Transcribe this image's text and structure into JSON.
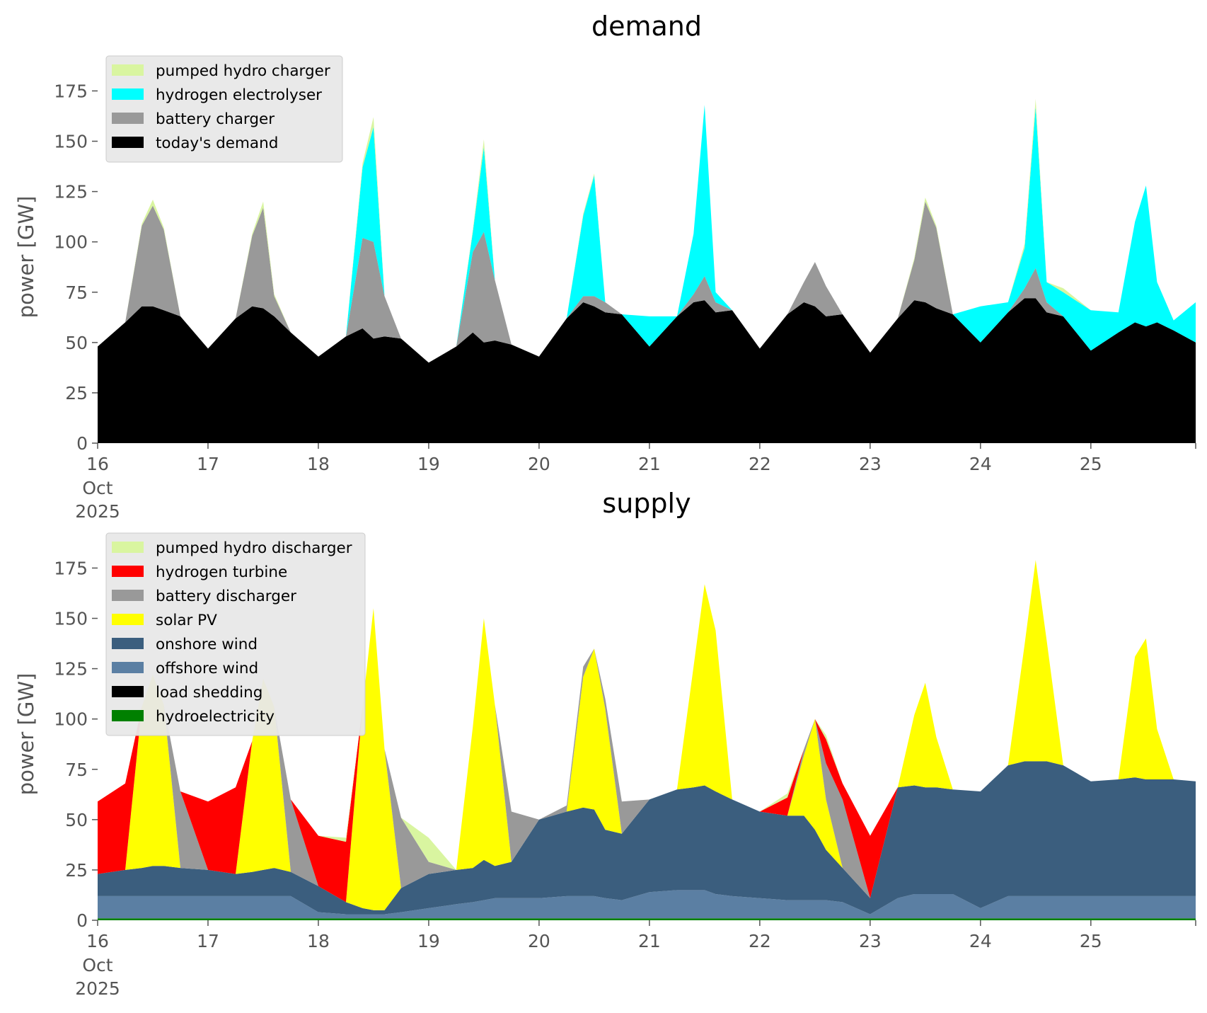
{
  "chart_data": [
    {
      "type": "area",
      "stacked": true,
      "title": "demand",
      "ylabel": "power [GW]",
      "xlabel": "",
      "ylim": [
        0,
        185
      ],
      "yticks": [
        0,
        25,
        50,
        75,
        100,
        125,
        150,
        175
      ],
      "xlim": [
        0,
        9.95
      ],
      "xticks": [
        0,
        1,
        2,
        3,
        4,
        5,
        6,
        7,
        8,
        9
      ],
      "xtick_labels": [
        "16",
        "17",
        "18",
        "19",
        "20",
        "21",
        "22",
        "23",
        "24",
        "25"
      ],
      "date_label": [
        "Oct",
        "2025"
      ],
      "x_unit": "days since 16 Oct 2025",
      "legend_position": "upper-left",
      "grid": false,
      "x": [
        0,
        0.25,
        0.4,
        0.5,
        0.6,
        0.75,
        1,
        1.25,
        1.4,
        1.5,
        1.6,
        1.75,
        2,
        2.25,
        2.4,
        2.5,
        2.6,
        2.75,
        3,
        3.25,
        3.4,
        3.5,
        3.6,
        3.75,
        4,
        4.25,
        4.4,
        4.5,
        4.6,
        4.75,
        5,
        5.25,
        5.4,
        5.5,
        5.6,
        5.75,
        6,
        6.25,
        6.4,
        6.5,
        6.6,
        6.75,
        7,
        7.25,
        7.4,
        7.5,
        7.6,
        7.75,
        8,
        8.25,
        8.4,
        8.5,
        8.6,
        8.75,
        9,
        9.25,
        9.4,
        9.5,
        9.6,
        9.75,
        9.95
      ],
      "series": [
        {
          "name": "today's demand",
          "color": "#000000",
          "values": [
            48,
            60,
            68,
            68,
            66,
            63,
            47,
            62,
            68,
            67,
            63,
            55,
            43,
            53,
            57,
            52,
            53,
            52,
            40,
            48,
            55,
            50,
            51,
            49,
            43,
            62,
            70,
            68,
            65,
            64,
            48,
            63,
            70,
            71,
            65,
            66,
            47,
            64,
            70,
            68,
            63,
            64,
            45,
            62,
            71,
            70,
            67,
            64,
            50,
            65,
            72,
            72,
            65,
            63,
            46,
            55,
            60,
            58,
            60,
            56,
            50
          ]
        },
        {
          "name": "battery charger",
          "color": "#999999",
          "values": [
            0,
            0,
            40,
            50,
            40,
            0,
            0,
            0,
            35,
            50,
            10,
            0,
            0,
            0,
            45,
            48,
            20,
            0,
            0,
            0,
            40,
            55,
            30,
            0,
            0,
            0,
            3,
            5,
            5,
            0,
            0,
            0,
            4,
            12,
            5,
            0,
            0,
            0,
            10,
            22,
            15,
            0,
            0,
            0,
            20,
            50,
            40,
            0,
            0,
            0,
            5,
            15,
            5,
            0,
            0,
            0,
            0,
            0,
            0,
            0,
            0
          ]
        },
        {
          "name": "hydrogen electrolyser",
          "color": "#00ffff",
          "values": [
            0,
            0,
            0,
            0,
            0,
            0,
            0,
            0,
            0,
            0,
            0,
            0,
            0,
            0,
            35,
            57,
            0,
            0,
            0,
            0,
            10,
            42,
            0,
            0,
            0,
            0,
            40,
            60,
            0,
            0,
            15,
            0,
            30,
            85,
            5,
            0,
            0,
            0,
            0,
            0,
            0,
            0,
            0,
            0,
            0,
            0,
            0,
            0,
            18,
            5,
            20,
            80,
            10,
            12,
            20,
            10,
            50,
            70,
            20,
            5,
            20
          ]
        },
        {
          "name": "pumped hydro charger",
          "color": "#d9f5a0",
          "values": [
            0,
            0,
            1,
            3,
            1,
            0,
            0,
            0,
            1,
            3,
            1,
            0,
            0,
            0,
            2,
            5,
            0,
            0,
            0,
            0,
            1,
            4,
            0,
            0,
            0,
            0,
            1,
            1,
            0,
            0,
            0,
            0,
            0,
            0,
            0,
            0,
            0,
            0,
            0,
            0,
            0,
            0,
            0,
            0,
            1,
            2,
            1,
            0,
            0,
            0,
            2,
            4,
            0,
            2,
            0,
            0,
            0,
            0,
            0,
            0,
            0
          ]
        }
      ]
    },
    {
      "type": "area",
      "stacked": true,
      "title": "supply",
      "ylabel": "power [GW]",
      "xlabel": "",
      "ylim": [
        0,
        185
      ],
      "yticks": [
        0,
        25,
        50,
        75,
        100,
        125,
        150,
        175
      ],
      "xlim": [
        0,
        9.95
      ],
      "xticks": [
        0,
        1,
        2,
        3,
        4,
        5,
        6,
        7,
        8,
        9
      ],
      "xtick_labels": [
        "16",
        "17",
        "18",
        "19",
        "20",
        "21",
        "22",
        "23",
        "24",
        "25"
      ],
      "date_label": [
        "Oct",
        "2025"
      ],
      "x_unit": "days since 16 Oct 2025",
      "legend_position": "upper-left",
      "grid": false,
      "x": [
        0,
        0.25,
        0.4,
        0.5,
        0.6,
        0.75,
        1,
        1.25,
        1.4,
        1.5,
        1.6,
        1.75,
        2,
        2.25,
        2.4,
        2.5,
        2.6,
        2.75,
        3,
        3.25,
        3.4,
        3.5,
        3.6,
        3.75,
        4,
        4.25,
        4.4,
        4.5,
        4.6,
        4.75,
        5,
        5.25,
        5.4,
        5.5,
        5.6,
        5.75,
        6,
        6.25,
        6.4,
        6.5,
        6.6,
        6.75,
        7,
        7.25,
        7.4,
        7.5,
        7.6,
        7.75,
        8,
        8.25,
        8.4,
        8.5,
        8.6,
        8.75,
        9,
        9.25,
        9.4,
        9.5,
        9.6,
        9.75,
        9.95
      ],
      "series": [
        {
          "name": "hydroelectricity",
          "color": "#008000",
          "values": [
            1,
            1,
            1,
            1,
            1,
            1,
            1,
            1,
            1,
            1,
            1,
            1,
            1,
            1,
            1,
            1,
            1,
            1,
            1,
            1,
            1,
            1,
            1,
            1,
            1,
            1,
            1,
            1,
            1,
            1,
            1,
            1,
            1,
            1,
            1,
            1,
            1,
            1,
            1,
            1,
            1,
            1,
            1,
            1,
            1,
            1,
            1,
            1,
            1,
            1,
            1,
            1,
            1,
            1,
            1,
            1,
            1,
            1,
            1,
            1,
            1
          ]
        },
        {
          "name": "load shedding",
          "color": "#000000",
          "values": [
            0,
            0,
            0,
            0,
            0,
            0,
            0,
            0,
            0,
            0,
            0,
            0,
            0,
            0,
            0,
            0,
            0,
            0,
            0,
            0,
            0,
            0,
            0,
            0,
            0,
            0,
            0,
            0,
            0,
            0,
            0,
            0,
            0,
            0,
            0,
            0,
            0,
            0,
            0,
            0,
            0,
            0,
            0,
            0,
            0,
            0,
            0,
            0,
            0,
            0,
            0,
            0,
            0,
            0,
            0,
            0,
            0,
            0,
            0,
            0,
            0
          ]
        },
        {
          "name": "offshore wind",
          "color": "#5b7fa3",
          "values": [
            11,
            11,
            11,
            11,
            11,
            11,
            11,
            11,
            11,
            11,
            11,
            11,
            3,
            2,
            2,
            2,
            2,
            3,
            5,
            7,
            8,
            9,
            10,
            10,
            10,
            11,
            11,
            11,
            10,
            9,
            13,
            14,
            14,
            14,
            12,
            11,
            10,
            9,
            9,
            9,
            9,
            8,
            2,
            10,
            12,
            12,
            12,
            12,
            5,
            11,
            11,
            11,
            11,
            11,
            11,
            11,
            11,
            11,
            11,
            11,
            11
          ]
        },
        {
          "name": "onshore wind",
          "color": "#3b5e7e",
          "values": [
            11,
            13,
            14,
            15,
            15,
            14,
            13,
            11,
            12,
            13,
            14,
            12,
            13,
            6,
            3,
            2,
            2,
            12,
            17,
            17,
            17,
            20,
            16,
            18,
            39,
            42,
            44,
            43,
            34,
            33,
            46,
            50,
            51,
            52,
            51,
            48,
            43,
            42,
            42,
            35,
            25,
            17,
            8,
            55,
            54,
            53,
            53,
            52,
            58,
            65,
            67,
            67,
            67,
            65,
            57,
            58,
            59,
            58,
            58,
            58,
            57
          ]
        },
        {
          "name": "solar PV",
          "color": "#ffff00",
          "values": [
            0,
            0,
            80,
            95,
            80,
            0,
            0,
            0,
            65,
            95,
            80,
            0,
            0,
            0,
            100,
            150,
            80,
            0,
            0,
            0,
            70,
            120,
            80,
            0,
            0,
            0,
            65,
            80,
            60,
            0,
            0,
            0,
            60,
            100,
            80,
            0,
            0,
            0,
            30,
            55,
            25,
            0,
            0,
            0,
            35,
            52,
            25,
            0,
            0,
            0,
            58,
            100,
            60,
            0,
            0,
            0,
            60,
            70,
            25,
            0,
            0
          ]
        },
        {
          "name": "battery discharger",
          "color": "#999999",
          "values": [
            0,
            0,
            0,
            0,
            0,
            38,
            0,
            0,
            0,
            0,
            0,
            36,
            0,
            0,
            0,
            0,
            0,
            35,
            6,
            0,
            0,
            0,
            0,
            25,
            0,
            3,
            5,
            0,
            5,
            16,
            0,
            0,
            0,
            0,
            0,
            0,
            0,
            0,
            3,
            0,
            18,
            34,
            0,
            0,
            0,
            0,
            0,
            0,
            0,
            0,
            0,
            0,
            0,
            0,
            0,
            0,
            0,
            0,
            0,
            0,
            0
          ]
        },
        {
          "name": "hydrogen turbine",
          "color": "#ff0000",
          "values": [
            36,
            43,
            0,
            0,
            0,
            0,
            34,
            43,
            0,
            0,
            0,
            0,
            25,
            30,
            0,
            0,
            0,
            0,
            0,
            0,
            0,
            0,
            0,
            0,
            0,
            0,
            0,
            0,
            0,
            0,
            0,
            0,
            0,
            0,
            0,
            0,
            0,
            9,
            0,
            0,
            12,
            8,
            31,
            0,
            0,
            0,
            0,
            0,
            0,
            0,
            0,
            0,
            0,
            0,
            0,
            0,
            0,
            0,
            0,
            0,
            0
          ]
        },
        {
          "name": "pumped hydro discharger",
          "color": "#d9f5a0",
          "values": [
            0,
            0,
            0,
            0,
            0,
            0,
            0,
            0,
            0,
            0,
            0,
            0,
            0,
            2,
            0,
            0,
            0,
            0,
            12,
            0,
            0,
            0,
            0,
            0,
            0,
            0,
            0,
            0,
            0,
            0,
            0,
            0,
            0,
            0,
            0,
            0,
            0,
            2,
            0,
            0,
            2,
            0,
            0,
            0,
            0,
            0,
            0,
            0,
            0,
            0,
            0,
            0,
            0,
            0,
            0,
            0,
            0,
            0,
            0,
            0,
            0
          ]
        }
      ]
    }
  ]
}
